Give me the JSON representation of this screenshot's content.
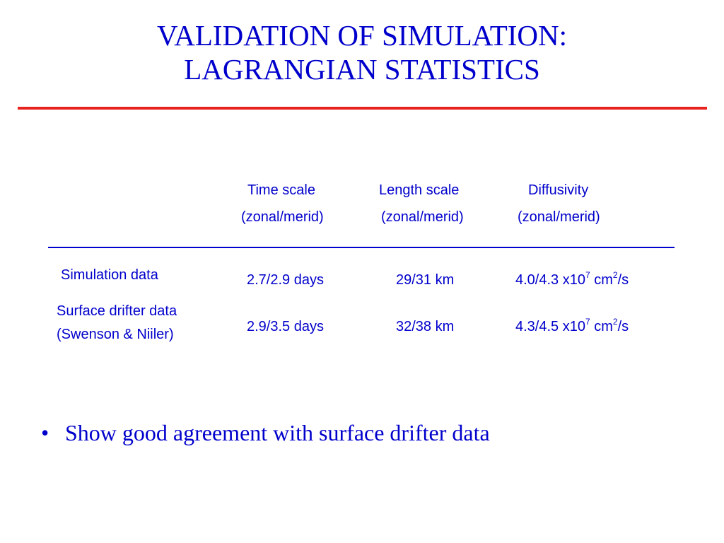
{
  "slide": {
    "title_line1": "VALIDATION OF SIMULATION:",
    "title_line2": "LAGRANGIAN STATISTICS",
    "accent_color": "#e8231f",
    "text_color": "#0000cc"
  },
  "table": {
    "headers": [
      {
        "name": "Time scale",
        "sub": "(zonal/merid)"
      },
      {
        "name": "Length scale",
        "sub": "(zonal/merid)"
      },
      {
        "name": "Diffusivity",
        "sub": "(zonal/merid)"
      }
    ],
    "rows": [
      {
        "label_line1": "Simulation data",
        "label_line2": "",
        "time": "2.7/2.9 days",
        "length": "29/31 km",
        "diff_value": "4.0/4.3 x10",
        "diff_exp": "7",
        "diff_unit": " cm",
        "diff_unit_exp": "2",
        "diff_unit_tail": "/s"
      },
      {
        "label_line1": "Surface drifter data",
        "label_line2": "(Swenson & Niiler)",
        "time": "2.9/3.5 days",
        "length": "32/38 km",
        "diff_value": "4.3/4.5 x10",
        "diff_exp": "7",
        "diff_unit": " cm",
        "diff_unit_exp": "2",
        "diff_unit_tail": "/s"
      }
    ]
  },
  "bullets": [
    {
      "symbol": "•",
      "text": "Show good agreement with surface drifter data"
    }
  ]
}
